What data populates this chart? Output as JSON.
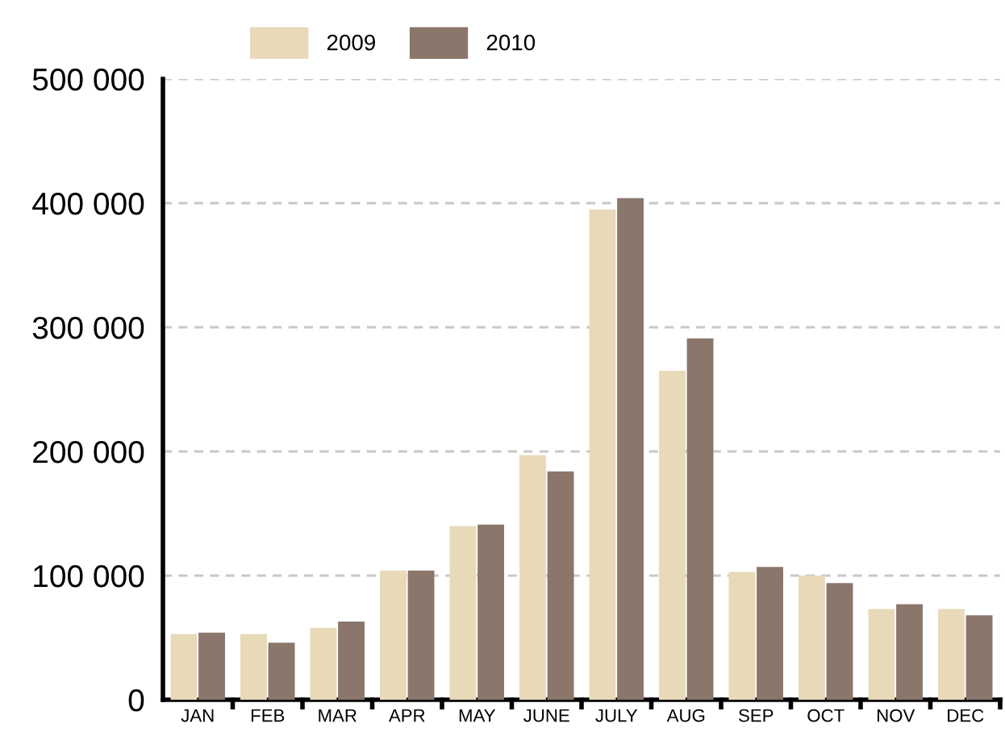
{
  "chart_data": {
    "type": "bar",
    "categories": [
      "JAN",
      "FEB",
      "MAR",
      "APR",
      "MAY",
      "JUNE",
      "JULY",
      "AUG",
      "SEP",
      "OCT",
      "NOV",
      "DEC"
    ],
    "series": [
      {
        "name": "2009",
        "color": "#e8d9b8",
        "values": [
          53000,
          53000,
          58000,
          104000,
          140000,
          197000,
          395000,
          265000,
          103000,
          100000,
          73000,
          73000
        ]
      },
      {
        "name": "2010",
        "color": "#8b766c",
        "values": [
          54000,
          46000,
          63000,
          104000,
          141000,
          184000,
          404000,
          291000,
          107000,
          94000,
          77000,
          68000
        ]
      }
    ],
    "ylim": [
      0,
      500000
    ],
    "yticks": [
      0,
      {
        "value": 100000,
        "label": "100 000"
      },
      {
        "value": 200000,
        "label": "200 000"
      },
      {
        "value": 300000,
        "label": "300 000"
      },
      {
        "value": 400000,
        "label": "400 000"
      },
      {
        "value": 500000,
        "label": "500 000"
      }
    ],
    "grid": "y",
    "legend": "top"
  }
}
